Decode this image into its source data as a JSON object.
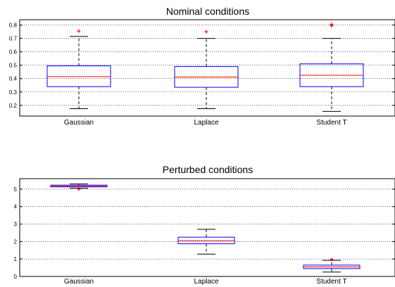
{
  "chart_data": [
    {
      "type": "box",
      "title": "Nominal conditions",
      "categories": [
        "Gaussian",
        "Laplace",
        "Student T"
      ],
      "ylim": [
        0.12,
        0.84
      ],
      "yticks": [
        0.2,
        0.3,
        0.4,
        0.5,
        0.6,
        0.7,
        0.8
      ],
      "grid": "horizontal-dotted",
      "boxes": [
        {
          "whisker_low": 0.175,
          "q1": 0.34,
          "median": 0.415,
          "q3": 0.495,
          "whisker_high": 0.715,
          "outliers": [
            0.755
          ]
        },
        {
          "whisker_low": 0.175,
          "q1": 0.335,
          "median": 0.412,
          "q3": 0.49,
          "whisker_high": 0.7,
          "outliers": [
            0.75
          ]
        },
        {
          "whisker_low": 0.155,
          "q1": 0.34,
          "median": 0.425,
          "q3": 0.51,
          "whisker_high": 0.7,
          "outliers": [
            0.795,
            0.805
          ]
        }
      ],
      "colors": {
        "box": "#0000ff",
        "median": "#ff0000",
        "outlier": "#ff0000",
        "whisker": "#000000"
      }
    },
    {
      "type": "box",
      "title": "Perturbed conditions",
      "categories": [
        "Gaussian",
        "Laplace",
        "Student T"
      ],
      "ylim": [
        0,
        5.6
      ],
      "yticks": [
        0,
        1,
        2,
        3,
        4,
        5
      ],
      "grid": "horizontal-dotted",
      "boxes": [
        {
          "whisker_low": 5.05,
          "q1": 5.13,
          "median": 5.18,
          "q3": 5.23,
          "whisker_high": 5.3,
          "outliers": [
            5.0
          ]
        },
        {
          "whisker_low": 1.28,
          "q1": 1.87,
          "median": 2.05,
          "q3": 2.25,
          "whisker_high": 2.7,
          "outliers": []
        },
        {
          "whisker_low": 0.25,
          "q1": 0.45,
          "median": 0.55,
          "q3": 0.65,
          "whisker_high": 0.92,
          "outliers": [
            0.97
          ]
        }
      ],
      "colors": {
        "box": "#0000ff",
        "median": "#ff0000",
        "outlier": "#ff0000",
        "whisker": "#000000"
      }
    }
  ]
}
